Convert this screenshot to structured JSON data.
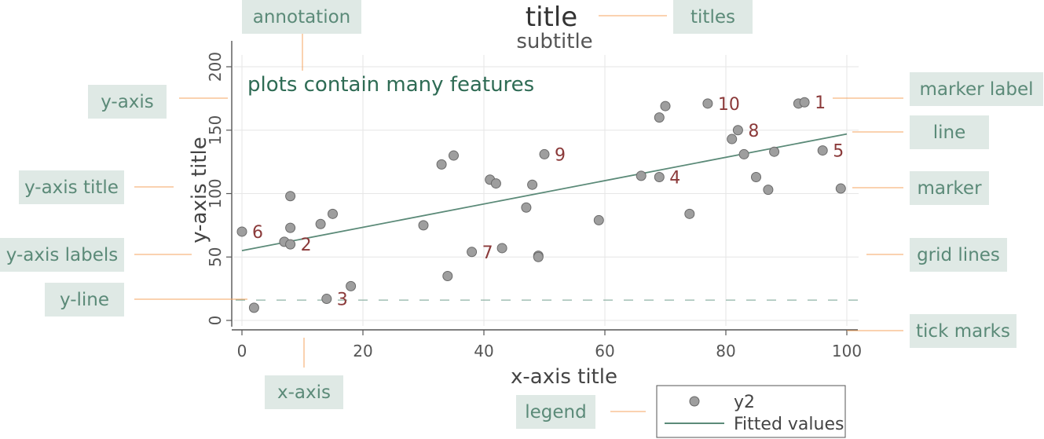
{
  "chart_data": {
    "type": "scatter",
    "title": "title",
    "subtitle": "subtitle",
    "xlabel": "x-axis title",
    "ylabel": "y-axis title",
    "annotation_text": "plots contain many features",
    "xlim": [
      0,
      100
    ],
    "ylim": [
      0,
      200
    ],
    "x_ticks": [
      0,
      20,
      40,
      60,
      80,
      100
    ],
    "y_ticks": [
      0,
      50,
      100,
      150,
      200
    ],
    "grid": true,
    "y_line": 16,
    "legend": {
      "position": "bottom-center",
      "entries": [
        "y2",
        "Fitted values"
      ]
    },
    "series": [
      {
        "name": "y2",
        "kind": "scatter",
        "color": "#9e9e9e",
        "points": [
          {
            "x": 0,
            "y": 70
          },
          {
            "x": 2,
            "y": 10
          },
          {
            "x": 7,
            "y": 62
          },
          {
            "x": 8,
            "y": 98
          },
          {
            "x": 8,
            "y": 73
          },
          {
            "x": 8,
            "y": 60
          },
          {
            "x": 13,
            "y": 76
          },
          {
            "x": 14,
            "y": 17
          },
          {
            "x": 15,
            "y": 84
          },
          {
            "x": 18,
            "y": 27
          },
          {
            "x": 30,
            "y": 75
          },
          {
            "x": 33,
            "y": 123
          },
          {
            "x": 34,
            "y": 35
          },
          {
            "x": 35,
            "y": 130
          },
          {
            "x": 38,
            "y": 54
          },
          {
            "x": 41,
            "y": 111
          },
          {
            "x": 42,
            "y": 108
          },
          {
            "x": 43,
            "y": 57
          },
          {
            "x": 47,
            "y": 89
          },
          {
            "x": 48,
            "y": 107
          },
          {
            "x": 49,
            "y": 51
          },
          {
            "x": 49,
            "y": 50
          },
          {
            "x": 50,
            "y": 131
          },
          {
            "x": 59,
            "y": 79
          },
          {
            "x": 66,
            "y": 114
          },
          {
            "x": 69,
            "y": 113
          },
          {
            "x": 69,
            "y": 160
          },
          {
            "x": 70,
            "y": 169
          },
          {
            "x": 74,
            "y": 84
          },
          {
            "x": 77,
            "y": 171
          },
          {
            "x": 81,
            "y": 143
          },
          {
            "x": 82,
            "y": 150
          },
          {
            "x": 83,
            "y": 131
          },
          {
            "x": 85,
            "y": 113
          },
          {
            "x": 87,
            "y": 103
          },
          {
            "x": 88,
            "y": 133
          },
          {
            "x": 92,
            "y": 171
          },
          {
            "x": 93,
            "y": 172
          },
          {
            "x": 96,
            "y": 134
          },
          {
            "x": 99,
            "y": 104
          }
        ],
        "marker_labels": [
          {
            "x": 93,
            "y": 172,
            "label": "1"
          },
          {
            "x": 8,
            "y": 60,
            "label": "2"
          },
          {
            "x": 14,
            "y": 17,
            "label": "3"
          },
          {
            "x": 69,
            "y": 113,
            "label": "4"
          },
          {
            "x": 96,
            "y": 134,
            "label": "5"
          },
          {
            "x": 0,
            "y": 70,
            "label": "6"
          },
          {
            "x": 38,
            "y": 54,
            "label": "7"
          },
          {
            "x": 82,
            "y": 150,
            "label": "8"
          },
          {
            "x": 50,
            "y": 131,
            "label": "9"
          },
          {
            "x": 77,
            "y": 171,
            "label": "10"
          }
        ]
      },
      {
        "name": "Fitted values",
        "kind": "line",
        "color": "#5b8a78",
        "x": [
          0,
          100
        ],
        "y": [
          55,
          147
        ]
      }
    ],
    "callouts": [
      {
        "label": "annotation",
        "target": "annotation-text"
      },
      {
        "label": "titles",
        "target": "title"
      },
      {
        "label": "y-axis",
        "target": "y-axis"
      },
      {
        "label": "marker label",
        "target": "marker-label"
      },
      {
        "label": "line",
        "target": "fitted-line"
      },
      {
        "label": "y-axis title",
        "target": "y-axis-title"
      },
      {
        "label": "marker",
        "target": "marker"
      },
      {
        "label": "y-axis labels",
        "target": "y-tick-labels"
      },
      {
        "label": "grid lines",
        "target": "grid-lines"
      },
      {
        "label": "y-line",
        "target": "y-reference-line"
      },
      {
        "label": "tick marks",
        "target": "tick-marks"
      },
      {
        "label": "x-axis",
        "target": "x-axis"
      },
      {
        "label": "legend",
        "target": "legend"
      }
    ],
    "colors": {
      "callout_box": "#dfe9e5",
      "callout_text": "#5b8a78",
      "callout_line": "#f4a460",
      "marker_label": "#8b3a3a",
      "annotation": "#2e6b54",
      "grid": "#e6e6e6",
      "axis": "#555555"
    }
  }
}
